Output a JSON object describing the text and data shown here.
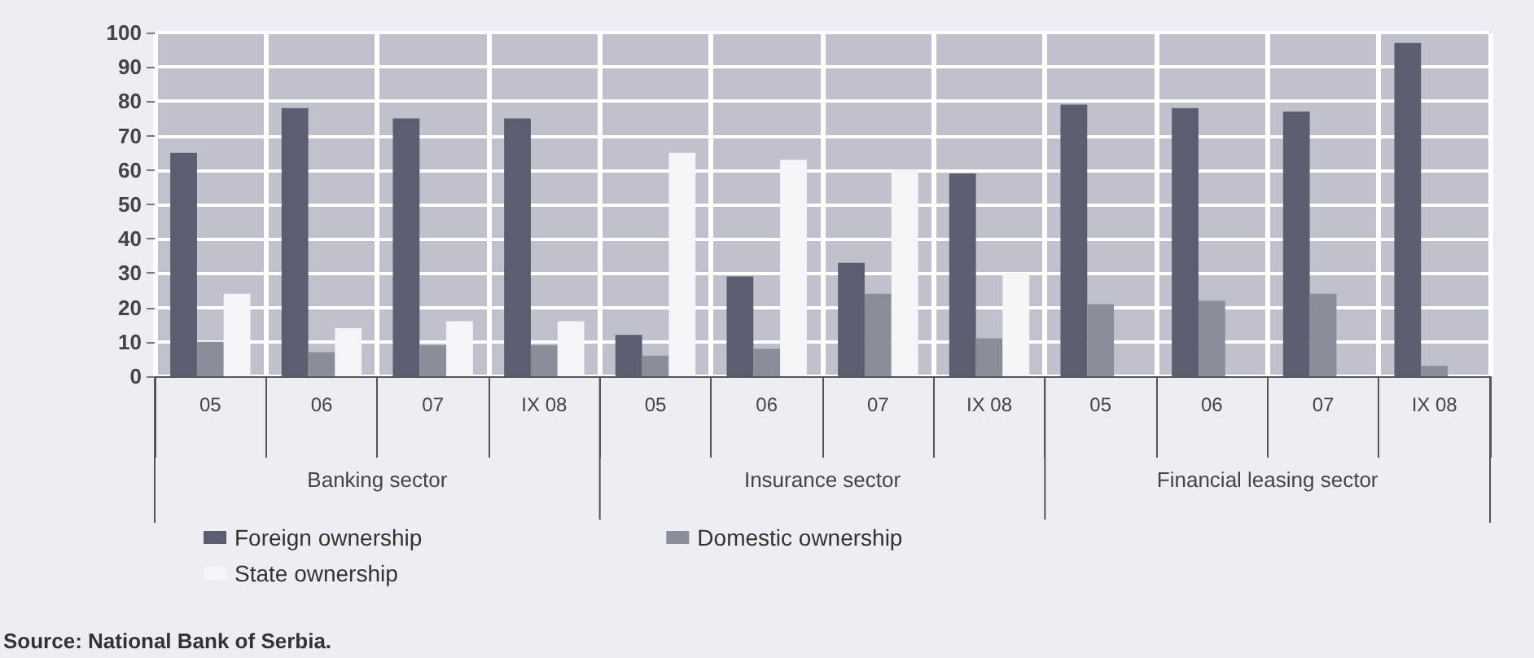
{
  "chart_data": {
    "type": "bar",
    "categories": [
      "05",
      "06",
      "07",
      "IX 08",
      "05",
      "06",
      "07",
      "IX 08",
      "05",
      "06",
      "07",
      "IX 08"
    ],
    "series": [
      {
        "name": "Foreign ownership",
        "color": "#5a5e6e",
        "values": [
          65,
          78,
          75,
          75,
          12,
          29,
          33,
          59,
          79,
          78,
          77,
          97
        ]
      },
      {
        "name": "Domestic ownership",
        "color": "#8a8d9a",
        "values": [
          10,
          7,
          9,
          9,
          6,
          8,
          24,
          11,
          21,
          22,
          24,
          3
        ]
      },
      {
        "name": "State ownership",
        "color": "#f4f5f8",
        "values": [
          24,
          14,
          16,
          16,
          65,
          63,
          60,
          30,
          null,
          null,
          null,
          null
        ]
      }
    ],
    "ylim": [
      0,
      100
    ],
    "yticks": [
      0,
      10,
      20,
      30,
      40,
      50,
      60,
      70,
      80,
      90,
      100
    ],
    "grid": true,
    "legend": "bottom",
    "annotations": [
      "Banking sector",
      "Insurance sector",
      "Financial leasing sector",
      "Source: National Bank of Serbia."
    ]
  }
}
